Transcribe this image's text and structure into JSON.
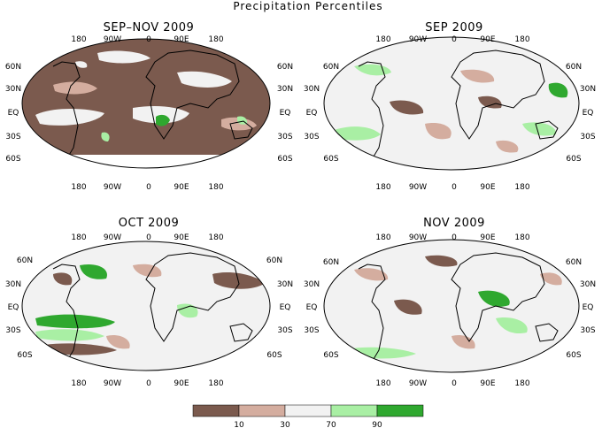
{
  "figure_title": "Precipitation Percentiles",
  "panels": [
    {
      "title": "SEP–NOV 2009"
    },
    {
      "title": "SEP 2009"
    },
    {
      "title": "OCT 2009"
    },
    {
      "title": "NOV 2009"
    }
  ],
  "longitude_labels": [
    "180",
    "90W",
    "0",
    "90E",
    "180"
  ],
  "latitude_labels": [
    "60N",
    "30N",
    "EQ",
    "30S",
    "60S"
  ],
  "colorbar": {
    "thresholds": [
      "10",
      "30",
      "70",
      "90"
    ],
    "colors": [
      "#7b5a4e",
      "#d4ad9f",
      "#f2f2f2",
      "#a9efa4",
      "#2fa82f"
    ]
  }
}
